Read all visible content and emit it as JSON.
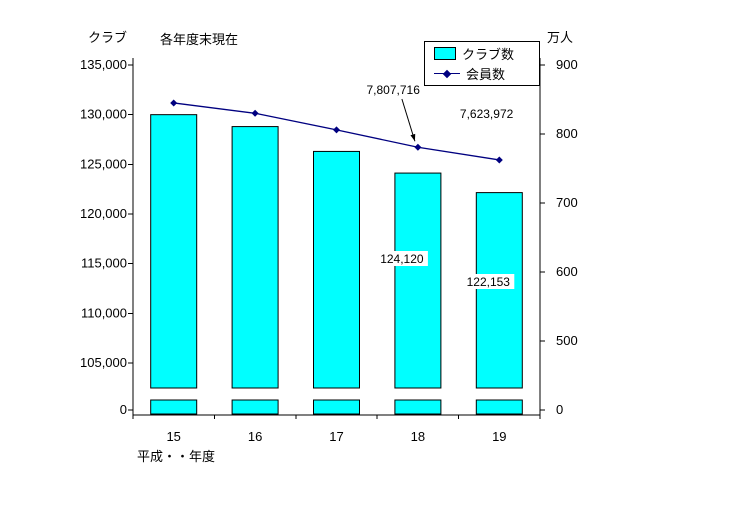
{
  "chart_data": {
    "type": "bar",
    "subtype": "bar-line-combo",
    "title": "各年度末現在",
    "background": "#ffffff",
    "grid": false,
    "left_axis": {
      "label": "クラブ",
      "ticks": [
        "135,000",
        "130,000",
        "125,000",
        "120,000",
        "115,000",
        "110,000",
        "105,000"
      ],
      "tick_values": [
        135000,
        130000,
        125000,
        120000,
        115000,
        110000,
        105000
      ],
      "zero_label": "0",
      "max": 135000,
      "min": 105000,
      "axis_break": true
    },
    "right_axis": {
      "label": "万人",
      "ticks": [
        "900",
        "800",
        "700",
        "600",
        "500"
      ],
      "tick_values": [
        900,
        800,
        700,
        600,
        500
      ],
      "zero_label": "0",
      "max": 900,
      "min": 500,
      "axis_break": true
    },
    "x_axis": {
      "label": "平成・・年度",
      "categories": [
        "15",
        "16",
        "17",
        "18",
        "19"
      ]
    },
    "series": [
      {
        "name": "クラブ数",
        "type": "bar",
        "color": "#00ffff",
        "axis": "left",
        "values": [
          130000,
          128800,
          126300,
          124120,
          122153
        ]
      },
      {
        "name": "会員数",
        "type": "line",
        "color": "#000080",
        "axis": "right",
        "values": [
          845,
          830,
          806,
          780.8,
          762.4
        ]
      }
    ],
    "annotations": [
      {
        "text": "7,807,716",
        "series": "line",
        "index": 3
      },
      {
        "text": "7,623,972",
        "series": "line",
        "index": 4
      },
      {
        "text": "124,120",
        "series": "bar",
        "index": 3
      },
      {
        "text": "122,153",
        "series": "bar",
        "index": 4
      }
    ],
    "legend": {
      "position": "top-right",
      "items": [
        "クラブ数",
        "会員数"
      ]
    }
  }
}
